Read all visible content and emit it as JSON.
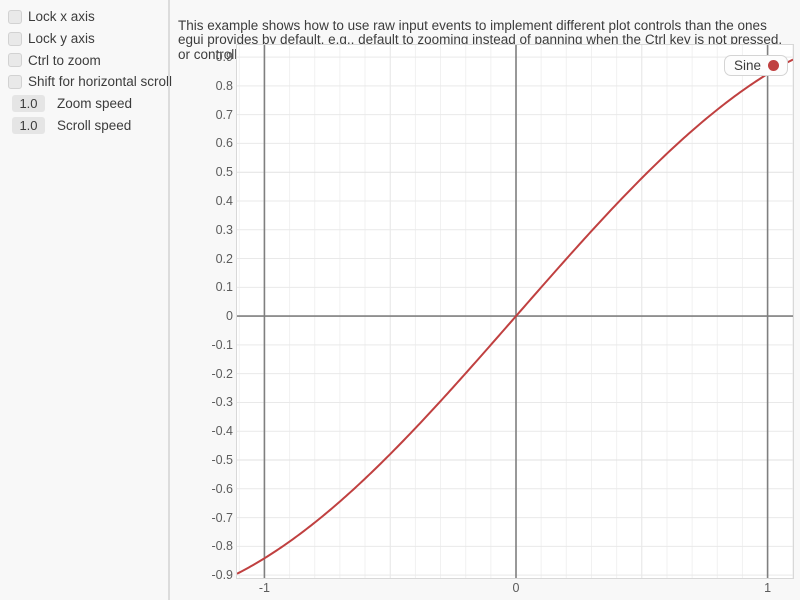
{
  "sidebar": {
    "checkboxes": [
      {
        "label": "Lock x axis",
        "checked": false
      },
      {
        "label": "Lock y axis",
        "checked": false
      },
      {
        "label": "Ctrl to zoom",
        "checked": false
      },
      {
        "label": "Shift for horizontal scroll",
        "checked": false
      }
    ],
    "drag_values": [
      {
        "value": "1.0",
        "label": "Zoom speed"
      },
      {
        "value": "1.0",
        "label": "Scroll speed"
      }
    ]
  },
  "main": {
    "description": "This example shows how to use raw input events to implement different plot controls than the ones egui provides by default, e.g., default to zooming instead of panning when the Ctrl key is not pressed, or controlling much it zooms with each mouse wheel step."
  },
  "chart_data": {
    "type": "line",
    "title": "",
    "xlabel": "",
    "ylabel": "",
    "x_range": [
      -1.109,
      1.101
    ],
    "y_range": [
      -0.91,
      0.942
    ],
    "x_ticks": {
      "values": [
        -1,
        0,
        1
      ],
      "labels": [
        "-1",
        "0",
        "1"
      ]
    },
    "y_ticks": {
      "values": [
        0.9,
        0.8,
        0.7,
        0.6,
        0.5,
        0.4,
        0.3,
        0.2,
        0.1,
        0,
        -0.1,
        -0.2,
        -0.3,
        -0.4,
        -0.5,
        -0.6,
        -0.7,
        -0.8,
        -0.9
      ],
      "labels": [
        "0.9",
        "0.8",
        "0.7",
        "0.6",
        "0.5",
        "0.4",
        "0.3",
        "0.2",
        "0.1",
        "0",
        "-0.1",
        "-0.2",
        "-0.3",
        "-0.4",
        "-0.5",
        "-0.6",
        "-0.7",
        "-0.8",
        "-0.9"
      ]
    },
    "grid": true,
    "legend": {
      "label": "Sine",
      "position": "top-right"
    },
    "series": [
      {
        "name": "Sine",
        "function": "sin",
        "color": "#c04040",
        "points": [
          [
            -1.1,
            -0.8912
          ],
          [
            -1.0,
            -0.8415
          ],
          [
            -0.9,
            -0.7833
          ],
          [
            -0.8,
            -0.7174
          ],
          [
            -0.7,
            -0.6442
          ],
          [
            -0.6,
            -0.5646
          ],
          [
            -0.5,
            -0.4794
          ],
          [
            -0.4,
            -0.3894
          ],
          [
            -0.3,
            -0.2955
          ],
          [
            -0.2,
            -0.1987
          ],
          [
            -0.1,
            -0.0998
          ],
          [
            0,
            0
          ],
          [
            0.1,
            0.0998
          ],
          [
            0.2,
            0.1987
          ],
          [
            0.3,
            0.2955
          ],
          [
            0.4,
            0.3894
          ],
          [
            0.5,
            0.4794
          ],
          [
            0.6,
            0.5646
          ],
          [
            0.7,
            0.6442
          ],
          [
            0.8,
            0.7174
          ],
          [
            0.9,
            0.7833
          ],
          [
            1.0,
            0.8415
          ],
          [
            1.1,
            0.8912
          ]
        ]
      }
    ],
    "style": {
      "axis_line_color": "#7f7f7f",
      "grid_minor_v": "#f1f1f1",
      "grid_half_v": "#e5e5e5",
      "grid_minor_h": "#e9e9e9",
      "grid_half_h": "#e2e2e2",
      "plot_bg": "#ffffff"
    }
  }
}
